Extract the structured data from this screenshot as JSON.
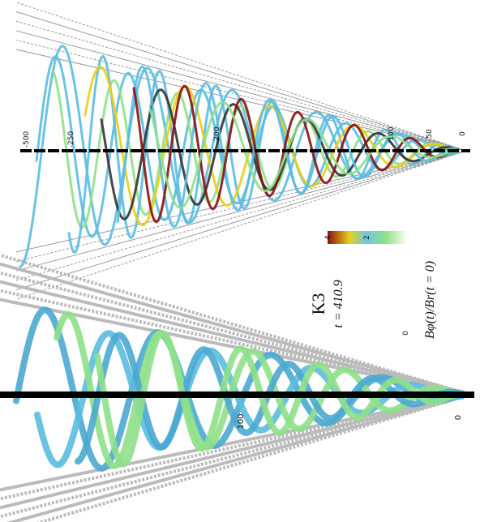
{
  "upper_panel": {
    "axis_labels": [
      "-500",
      "-250",
      "200",
      "100",
      "50",
      "0"
    ]
  },
  "lower_panel": {
    "axis_labels": [
      "100",
      "0"
    ]
  },
  "annotation": {
    "model": "K3",
    "time": "t = 410.9"
  },
  "colorbar": {
    "title": "Bφ(t)/Br(t = 0)",
    "ticks": [
      0,
      2,
      4
    ]
  }
}
